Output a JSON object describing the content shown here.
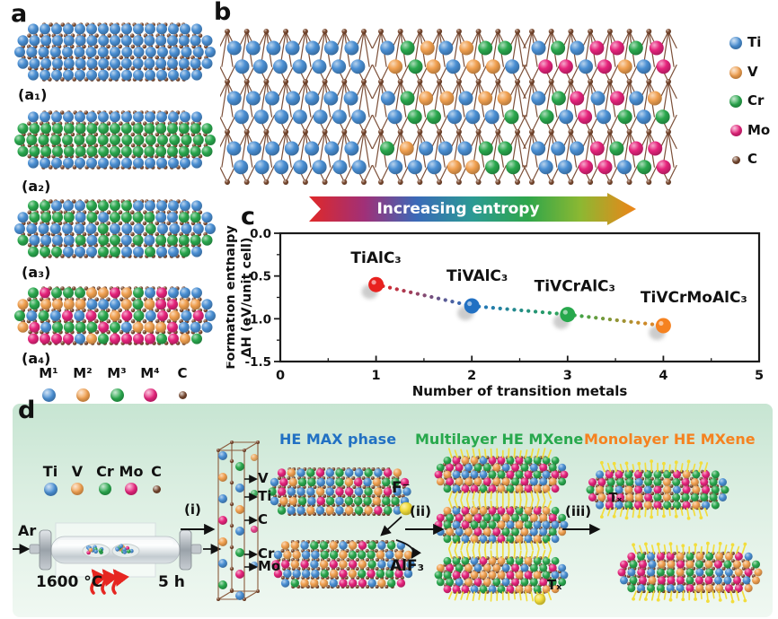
{
  "colors": {
    "atoms": {
      "blue": "#4a8fd3",
      "orange": "#f0a050",
      "green": "#2aa84e",
      "pink": "#e6247c",
      "brown": "#7b4a30",
      "yellow": "#f2dd3c"
    },
    "flame_red": "#e62621",
    "panel_d_bg_top": "#c7e5d2",
    "panel_d_bg_bottom": "#f0f8f2",
    "axis_black": "#111111"
  },
  "panel_a": {
    "label": "a",
    "flakes": [
      {
        "label": "(a₁)",
        "mode": "uniform",
        "composition": [
          "blue"
        ]
      },
      {
        "label": "(a₂)",
        "mode": "layered",
        "composition": [
          "blue",
          "green"
        ]
      },
      {
        "label": "(a₃)",
        "mode": "random",
        "composition": [
          "blue",
          "green"
        ]
      },
      {
        "label": "(a₄)",
        "mode": "random",
        "composition": [
          "blue",
          "orange",
          "green",
          "pink"
        ]
      }
    ],
    "legend": [
      {
        "label": "M¹",
        "color": "#4a8fd3"
      },
      {
        "label": "M²",
        "color": "#f0a050"
      },
      {
        "label": "M³",
        "color": "#2aa84e"
      },
      {
        "label": "M⁴",
        "color": "#e6247c"
      },
      {
        "label": "C",
        "color": "#7b4a30"
      }
    ]
  },
  "panel_b": {
    "label": "b",
    "lattices": [
      {
        "elements": [
          "Ti"
        ],
        "weights": [
          "blue"
        ]
      },
      {
        "elements": [
          "Ti",
          "V",
          "Cr"
        ],
        "weights": [
          "blue",
          "blue",
          "orange",
          "green"
        ]
      },
      {
        "elements": [
          "Ti",
          "V",
          "Cr",
          "Mo"
        ],
        "weights": [
          "blue",
          "blue",
          "blue",
          "green",
          "orange",
          "pink",
          "green",
          "pink"
        ]
      }
    ],
    "legend": [
      {
        "label": "Ti",
        "color": "#4a8fd3"
      },
      {
        "label": "V",
        "color": "#f0a050"
      },
      {
        "label": "Cr",
        "color": "#2aa84e"
      },
      {
        "label": "Mo",
        "color": "#e6247c"
      },
      {
        "label": "C",
        "color": "#7b4a30"
      }
    ]
  },
  "entropy_arrow": {
    "label": "Increasing entropy",
    "gradient": [
      "#e02828",
      "#a03078",
      "#3a6ab8",
      "#2b9a94",
      "#2fa64a",
      "#8cb832",
      "#ee8418"
    ]
  },
  "panel_c": {
    "label": "c"
  },
  "chart_data": {
    "type": "scatter",
    "x": [
      1,
      2,
      3,
      4
    ],
    "y": [
      -0.6,
      -0.85,
      -0.95,
      -1.08
    ],
    "point_labels": [
      "TiAlC₃",
      "TiVAlC₃",
      "TiVCrAlC₃",
      "TiVCrMoAlC₃"
    ],
    "point_colors": [
      "#e8211f",
      "#2271c3",
      "#27a84c",
      "#f58220"
    ],
    "xlabel": "Number of transition metals",
    "ylabel": [
      "Formation enthalpy",
      "ΔH (eV/unit cell)"
    ],
    "xlim": [
      0,
      5
    ],
    "ylim": [
      -1.5,
      0
    ],
    "xticks": [
      "0",
      "1",
      "2",
      "3",
      "4",
      "5"
    ],
    "yticks": [
      "0.0",
      "-0.5",
      "-1.0",
      "-1.5"
    ],
    "grid": false,
    "line_style": "dotted"
  },
  "panel_d": {
    "label": "d",
    "legend": [
      {
        "label": "Ti",
        "color": "#4a8fd3"
      },
      {
        "label": "V",
        "color": "#f0a050"
      },
      {
        "label": "Cr",
        "color": "#2aa84e"
      },
      {
        "label": "Mo",
        "color": "#e6247c"
      },
      {
        "label": "C",
        "color": "#7b4a30"
      }
    ],
    "ar_label": "Ar",
    "furnace": {
      "temperature": "1600 °C",
      "duration": "5 h"
    },
    "step_labels": {
      "i": "(i)",
      "ii": "(ii)",
      "iii": "(iii)"
    },
    "unit_cell_labels": [
      "V",
      "Ti",
      "C",
      "Cr",
      "Mo"
    ],
    "etchant_label": "F⁻",
    "byproduct_label": "AlF₃",
    "termination_label": "Tₓ",
    "titles": {
      "max_phase": {
        "text": "HE MAX phase",
        "color": "#2271c3"
      },
      "multilayer": {
        "text": "Multilayer HE MXene",
        "color": "#27a84c"
      },
      "monolayer": {
        "text": "Monolayer HE MXene",
        "color": "#f58220"
      }
    }
  }
}
